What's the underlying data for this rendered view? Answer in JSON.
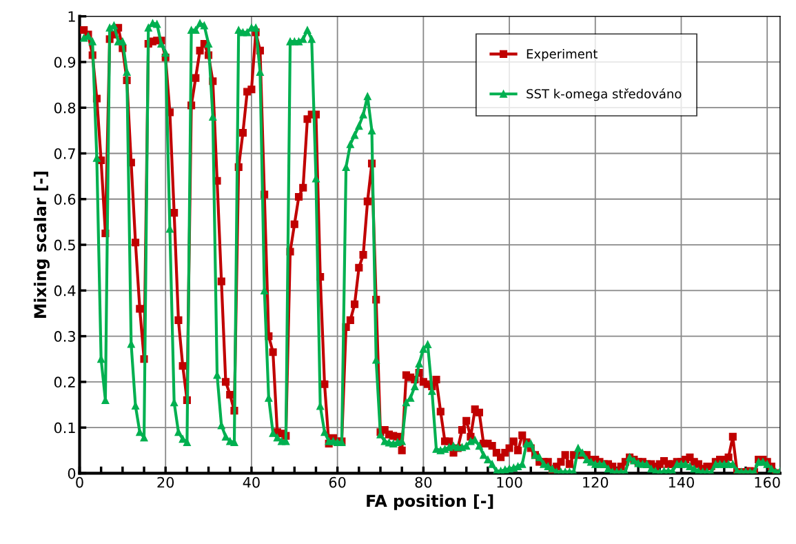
{
  "chart_data": {
    "type": "line",
    "xlabel": "FA position [-]",
    "ylabel": "Mixing scalar [-]",
    "x": [
      1,
      2,
      3,
      4,
      5,
      6,
      7,
      8,
      9,
      10,
      11,
      12,
      13,
      14,
      15,
      16,
      17,
      18,
      19,
      20,
      21,
      22,
      23,
      24,
      25,
      26,
      27,
      28,
      29,
      30,
      31,
      32,
      33,
      34,
      35,
      36,
      37,
      38,
      39,
      40,
      41,
      42,
      43,
      44,
      45,
      46,
      47,
      48,
      49,
      50,
      51,
      52,
      53,
      54,
      55,
      56,
      57,
      58,
      59,
      60,
      61,
      62,
      63,
      64,
      65,
      66,
      67,
      68,
      69,
      70,
      71,
      72,
      73,
      74,
      75,
      76,
      77,
      78,
      79,
      80,
      81,
      82,
      83,
      84,
      85,
      86,
      87,
      88,
      89,
      90,
      91,
      92,
      93,
      94,
      95,
      96,
      97,
      98,
      99,
      100,
      101,
      102,
      103,
      104,
      105,
      106,
      107,
      108,
      109,
      110,
      111,
      112,
      113,
      114,
      115,
      116,
      117,
      118,
      119,
      120,
      121,
      122,
      123,
      124,
      125,
      126,
      127,
      128,
      129,
      130,
      131,
      132,
      133,
      134,
      135,
      136,
      137,
      138,
      139,
      140,
      141,
      142,
      143,
      144,
      145,
      146,
      147,
      148,
      149,
      150,
      151,
      152,
      153,
      154,
      155,
      156,
      157,
      158,
      159,
      160,
      161,
      162,
      163
    ],
    "series": [
      {
        "name": "Experiment",
        "color": "#c00000",
        "marker": "square",
        "values": [
          0.97,
          0.96,
          0.915,
          0.82,
          0.685,
          0.525,
          0.95,
          0.96,
          0.975,
          0.93,
          0.86,
          0.68,
          0.505,
          0.36,
          0.25,
          0.94,
          0.945,
          0.947,
          0.947,
          0.91,
          0.79,
          0.57,
          0.335,
          0.235,
          0.16,
          0.805,
          0.865,
          0.925,
          0.94,
          0.915,
          0.858,
          0.64,
          0.42,
          0.2,
          0.172,
          0.137,
          0.67,
          0.745,
          0.835,
          0.84,
          0.965,
          0.925,
          0.61,
          0.3,
          0.265,
          0.09,
          0.087,
          0.082,
          0.485,
          0.545,
          0.605,
          0.625,
          0.775,
          0.785,
          0.785,
          0.43,
          0.195,
          0.065,
          0.077,
          0.07,
          0.07,
          0.32,
          0.335,
          0.37,
          0.45,
          0.478,
          0.595,
          0.678,
          0.38,
          0.09,
          0.095,
          0.085,
          0.082,
          0.08,
          0.05,
          0.215,
          0.21,
          0.205,
          0.22,
          0.2,
          0.195,
          0.19,
          0.205,
          0.135,
          0.07,
          0.07,
          0.045,
          0.055,
          0.095,
          0.115,
          0.08,
          0.14,
          0.133,
          0.065,
          0.065,
          0.06,
          0.045,
          0.035,
          0.045,
          0.055,
          0.07,
          0.05,
          0.083,
          0.068,
          0.055,
          0.04,
          0.025,
          0.025,
          0.025,
          0.005,
          0.015,
          0.025,
          0.04,
          0.02,
          0.04,
          0.04,
          0.04,
          0.04,
          0.03,
          0.03,
          0.025,
          0.02,
          0.02,
          0.015,
          0.005,
          0.015,
          0.025,
          0.035,
          0.03,
          0.025,
          0.025,
          0.02,
          0.02,
          0.015,
          0.02,
          0.027,
          0.02,
          0.02,
          0.025,
          0.025,
          0.03,
          0.035,
          0.025,
          0.02,
          0.01,
          0.015,
          0.015,
          0.025,
          0.03,
          0.03,
          0.035,
          0.08,
          0.003,
          0.003,
          0.003,
          0.005,
          0.003,
          0.03,
          0.03,
          0.025,
          0.015,
          0.0,
          0.0
        ]
      },
      {
        "name": "SST k-omega středováno",
        "color": "#00b050",
        "marker": "triangle",
        "values": [
          0.953,
          0.957,
          0.945,
          0.69,
          0.25,
          0.16,
          0.975,
          0.98,
          0.945,
          0.945,
          0.878,
          0.283,
          0.148,
          0.09,
          0.078,
          0.975,
          0.985,
          0.983,
          0.94,
          0.92,
          0.535,
          0.155,
          0.09,
          0.075,
          0.068,
          0.97,
          0.97,
          0.985,
          0.98,
          0.94,
          0.78,
          0.215,
          0.105,
          0.08,
          0.07,
          0.068,
          0.97,
          0.965,
          0.965,
          0.975,
          0.975,
          0.878,
          0.4,
          0.165,
          0.088,
          0.078,
          0.07,
          0.07,
          0.945,
          0.945,
          0.945,
          0.95,
          0.97,
          0.95,
          0.645,
          0.147,
          0.09,
          0.07,
          0.07,
          0.068,
          0.068,
          0.67,
          0.72,
          0.74,
          0.76,
          0.785,
          0.825,
          0.75,
          0.248,
          0.085,
          0.07,
          0.067,
          0.065,
          0.068,
          0.07,
          0.155,
          0.165,
          0.19,
          0.24,
          0.272,
          0.282,
          0.18,
          0.053,
          0.05,
          0.053,
          0.057,
          0.06,
          0.057,
          0.057,
          0.06,
          0.07,
          0.073,
          0.06,
          0.04,
          0.03,
          0.02,
          0.005,
          0.005,
          0.008,
          0.01,
          0.012,
          0.015,
          0.02,
          0.065,
          0.065,
          0.04,
          0.035,
          0.02,
          0.015,
          0.01,
          0.003,
          0.003,
          0.003,
          0.003,
          0.003,
          0.055,
          0.045,
          0.03,
          0.025,
          0.02,
          0.02,
          0.02,
          0.01,
          0.003,
          0.003,
          0.003,
          0.003,
          0.035,
          0.028,
          0.022,
          0.02,
          0.02,
          0.01,
          0.005,
          0.002,
          0.005,
          0.005,
          0.005,
          0.02,
          0.02,
          0.02,
          0.015,
          0.01,
          0.005,
          0.003,
          0.003,
          0.002,
          0.02,
          0.02,
          0.02,
          0.02,
          0.02,
          0.005,
          0.003,
          0.003,
          0.003,
          0.003,
          0.025,
          0.025,
          0.02,
          0.01,
          0.003,
          0.005
        ]
      }
    ],
    "xlim": [
      0,
      163
    ],
    "xticks": [
      0,
      {
        "value": 5,
        "label": null
      },
      {
        "value": 10,
        "label": null
      },
      {
        "value": 15,
        "label": null
      },
      20,
      {
        "value": 25,
        "label": null
      },
      {
        "value": 30,
        "label": null
      },
      {
        "value": 35,
        "label": null
      },
      40,
      {
        "value": 45,
        "label": null
      },
      {
        "value": 50,
        "label": null
      },
      {
        "value": 55,
        "label": null
      },
      60,
      {
        "value": 65,
        "label": null
      },
      {
        "value": 70,
        "label": null
      },
      {
        "value": 75,
        "label": null
      },
      80,
      {
        "value": 85,
        "label": null
      },
      {
        "value": 90,
        "label": null
      },
      {
        "value": 95,
        "label": null
      },
      100,
      {
        "value": 105,
        "label": null
      },
      {
        "value": 110,
        "label": null
      },
      {
        "value": 115,
        "label": null
      },
      120,
      {
        "value": 125,
        "label": null
      },
      {
        "value": 130,
        "label": null
      },
      {
        "value": 135,
        "label": null
      },
      140,
      {
        "value": 145,
        "label": null
      },
      {
        "value": 150,
        "label": null
      },
      {
        "value": 155,
        "label": null
      },
      160
    ],
    "ylim": [
      0,
      1
    ],
    "yticks": [
      0,
      0.1,
      0.2,
      0.3,
      0.4,
      0.5,
      0.6,
      0.7,
      0.8,
      0.9,
      1
    ],
    "grid": true,
    "legend": "top right",
    "line_style": "solid"
  }
}
